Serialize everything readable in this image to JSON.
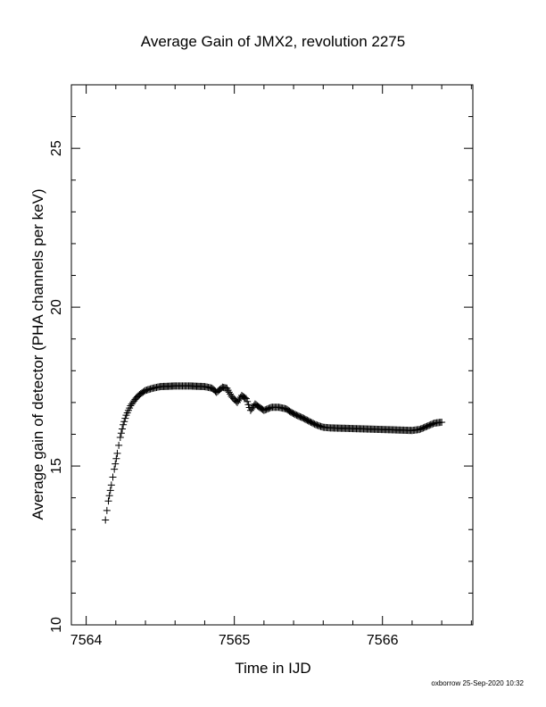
{
  "chart_data": {
    "type": "scatter",
    "title": "Average Gain of JMX2, revolution 2275",
    "xlabel": "Time in IJD",
    "ylabel": "Average gain of detector (PHA channels per keV)",
    "xlim": [
      7563.9,
      7566.61
    ],
    "ylim": [
      10,
      27
    ],
    "x_ticks": [
      "7564",
      "7565",
      "7566"
    ],
    "x_tick_values": [
      7564,
      7565,
      7566
    ],
    "x_minor_step": 0.2,
    "y_ticks": [
      "10",
      "15",
      "20",
      "25"
    ],
    "y_tick_values": [
      10,
      15,
      20,
      25
    ],
    "y_minor_step": 1,
    "grid": false,
    "marker": "plus",
    "series": [
      {
        "x": [
          7564.13,
          7564.15,
          7564.17,
          7564.19,
          7564.21,
          7564.23,
          7564.25,
          7564.27,
          7564.3,
          7564.33,
          7564.36,
          7564.4,
          7564.45,
          7564.5,
          7564.6,
          7564.7,
          7564.8,
          7564.85,
          7564.88,
          7564.92,
          7564.95,
          7564.98,
          7565.02,
          7565.05,
          7565.08,
          7565.11,
          7565.14,
          7565.17,
          7565.2,
          7565.25,
          7565.3,
          7565.35,
          7565.38,
          7565.42,
          7565.46,
          7565.5,
          7565.55,
          7565.6,
          7565.65,
          7565.8,
          7566.0,
          7566.2,
          7566.25,
          7566.3,
          7566.35,
          7566.4
        ],
        "y": [
          13.3,
          13.9,
          14.4,
          14.9,
          15.4,
          15.9,
          16.3,
          16.6,
          16.9,
          17.1,
          17.25,
          17.38,
          17.45,
          17.5,
          17.52,
          17.52,
          17.5,
          17.45,
          17.32,
          17.48,
          17.45,
          17.2,
          17.0,
          17.22,
          17.12,
          16.75,
          16.95,
          16.85,
          16.75,
          16.85,
          16.85,
          16.8,
          16.7,
          16.6,
          16.52,
          16.42,
          16.3,
          16.22,
          16.2,
          16.18,
          16.15,
          16.12,
          16.15,
          16.25,
          16.35,
          16.38
        ]
      }
    ]
  },
  "footer": "oxborrow 25-Sep-2020 10:32"
}
